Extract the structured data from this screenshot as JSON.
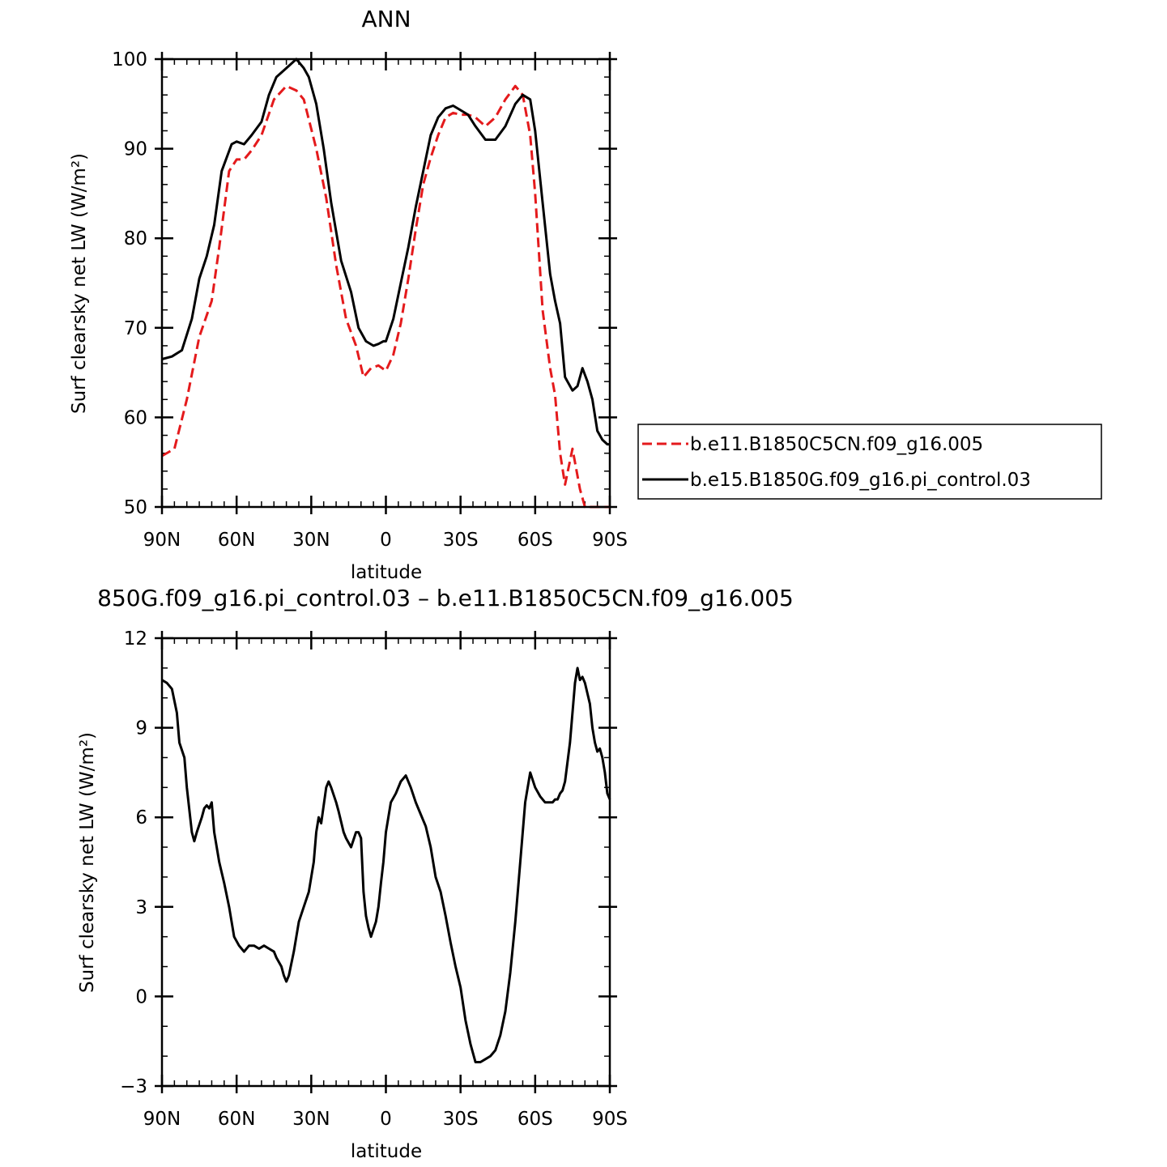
{
  "chart_data": [
    {
      "type": "line",
      "title": "ANN",
      "xlabel": "latitude",
      "ylabel": "Surf clearsky net LW (W/m²)",
      "xlim": [
        90,
        -90
      ],
      "ylim": [
        50,
        100
      ],
      "x_tick_values": [
        90,
        60,
        30,
        0,
        -30,
        -60,
        -90
      ],
      "x_tick_labels": [
        "90N",
        "60N",
        "30N",
        "0",
        "30S",
        "60S",
        "90S"
      ],
      "y_tick_values": [
        50,
        60,
        70,
        80,
        90,
        100
      ],
      "y_tick_labels": [
        "50",
        "60",
        "70",
        "80",
        "90",
        "100"
      ],
      "legend_position": "right",
      "series": [
        {
          "name": "b.e11.B1850C5CN.f09_g16.005",
          "color": "#e41a1c",
          "style": "dashed",
          "x": [
            90,
            85,
            80,
            75,
            70,
            67,
            63,
            60,
            57,
            54,
            50,
            45,
            40,
            36,
            33,
            28,
            24,
            20,
            16,
            12,
            9,
            6,
            3,
            0,
            -3,
            -6,
            -9,
            -12,
            -15,
            -18,
            -21,
            -24,
            -27,
            -30,
            -33,
            -36,
            -40,
            -44,
            -48,
            -52,
            -55,
            -58,
            -60,
            -63,
            -66,
            -68,
            -70,
            -72,
            -75,
            -78,
            -80,
            -82,
            -85,
            -88,
            -90
          ],
          "y": [
            55.7,
            56.5,
            62,
            69,
            73,
            79,
            87.5,
            88.8,
            88.8,
            89.8,
            91.5,
            95.5,
            97,
            96.5,
            95.5,
            90,
            84.5,
            77,
            71,
            68,
            64.5,
            65.5,
            65.8,
            65.2,
            67,
            70.5,
            75.5,
            81,
            86,
            89,
            91.5,
            93.5,
            94,
            93.8,
            93.8,
            93.5,
            92.5,
            93.5,
            95.5,
            97,
            96,
            91.5,
            85,
            72,
            65.5,
            62.5,
            56,
            52.5,
            56.5,
            52,
            50,
            50,
            50,
            50,
            50
          ]
        },
        {
          "name": "b.e15.B1850G.f09_g16.pi_control.03",
          "color": "#000000",
          "style": "solid",
          "x": [
            90,
            86,
            82,
            78,
            75,
            72,
            69,
            66,
            62,
            60,
            57,
            54,
            50,
            47,
            44,
            40,
            36,
            33,
            31,
            28,
            25,
            22,
            18,
            14,
            11,
            8,
            5,
            3,
            1,
            0,
            -3,
            -6,
            -9,
            -12,
            -15,
            -18,
            -21,
            -24,
            -27,
            -30,
            -33,
            -36,
            -40,
            -44,
            -48,
            -52,
            -55,
            -58,
            -60,
            -63,
            -66,
            -68,
            -70,
            -72,
            -75,
            -77,
            -79,
            -81,
            -83,
            -85,
            -87,
            -89,
            -90
          ],
          "y": [
            66.5,
            66.8,
            67.5,
            71,
            75.5,
            78,
            81.5,
            87.5,
            90.5,
            90.8,
            90.5,
            91.5,
            93,
            96,
            98,
            99,
            100,
            99,
            98,
            95,
            90,
            84,
            77.5,
            74,
            70,
            68.5,
            68,
            68.2,
            68.5,
            68.5,
            71,
            75,
            79,
            83.5,
            87.5,
            91.5,
            93.5,
            94.5,
            94.8,
            94.3,
            93.8,
            92.5,
            91,
            91,
            92.5,
            95,
            96,
            95.5,
            92,
            84,
            76,
            73,
            70.5,
            64.5,
            63,
            63.5,
            65.5,
            64,
            62,
            58.5,
            57.5,
            57,
            57
          ]
        }
      ]
    },
    {
      "type": "line",
      "title": "850G.f09_g16.pi_control.03 – b.e11.B1850C5CN.f09_g16.005",
      "xlabel": "latitude",
      "ylabel": "Surf clearsky net LW (W/m²)",
      "xlim": [
        90,
        -90
      ],
      "ylim": [
        -3,
        12
      ],
      "x_tick_values": [
        90,
        60,
        30,
        0,
        -30,
        -60,
        -90
      ],
      "x_tick_labels": [
        "90N",
        "60N",
        "30N",
        "0",
        "30S",
        "60S",
        "90S"
      ],
      "y_tick_values": [
        -3,
        0,
        3,
        6,
        9,
        12
      ],
      "y_tick_labels": [
        "−3",
        "0",
        "3",
        "6",
        "9",
        "12"
      ],
      "series": [
        {
          "color": "#000000",
          "style": "solid",
          "x": [
            90,
            88,
            86,
            84,
            83,
            81,
            80,
            78,
            77,
            76,
            74,
            73,
            72,
            71,
            70,
            69,
            67,
            65,
            63,
            61,
            59,
            57,
            55,
            53,
            51,
            49,
            47,
            45,
            44,
            42,
            41,
            40,
            39,
            37,
            35,
            33,
            31,
            29,
            28,
            27,
            26,
            24,
            23,
            22,
            20,
            19,
            17,
            16,
            14,
            12,
            11,
            10,
            9,
            8,
            7,
            6,
            4,
            3,
            2,
            1,
            0,
            -2,
            -4,
            -6,
            -8,
            -10,
            -12,
            -14,
            -15,
            -16,
            -18,
            -20,
            -22,
            -24,
            -26,
            -28,
            -30,
            -32,
            -34,
            -36,
            -38,
            -40,
            -42,
            -44,
            -46,
            -48,
            -50,
            -52,
            -54,
            -56,
            -58,
            -60,
            -62,
            -64,
            -66,
            -67,
            -68,
            -69,
            -70,
            -71,
            -72,
            -74,
            -76,
            -77,
            -78,
            -79,
            -80,
            -82,
            -83,
            -84,
            -85,
            -86,
            -87,
            -88,
            -89,
            -90
          ],
          "y": [
            10.6,
            10.5,
            10.3,
            9.5,
            8.5,
            8,
            7,
            5.5,
            5.2,
            5.5,
            6,
            6.3,
            6.4,
            6.3,
            6.5,
            5.5,
            4.5,
            3.8,
            3,
            2,
            1.7,
            1.5,
            1.7,
            1.7,
            1.6,
            1.7,
            1.6,
            1.5,
            1.3,
            1,
            0.7,
            0.5,
            0.7,
            1.5,
            2.5,
            3,
            3.5,
            4.5,
            5.5,
            6,
            5.8,
            7,
            7.2,
            7,
            6.5,
            6.2,
            5.5,
            5.3,
            5,
            5.5,
            5.5,
            5.3,
            3.5,
            2.7,
            2.3,
            2,
            2.5,
            3,
            3.8,
            4.5,
            5.5,
            6.5,
            6.8,
            7.2,
            7.4,
            7,
            6.5,
            6.1,
            5.9,
            5.7,
            5,
            4,
            3.5,
            2.7,
            1.8,
            1,
            0.3,
            -0.8,
            -1.6,
            -2.2,
            -2.2,
            -2.1,
            -2,
            -1.8,
            -1.3,
            -0.5,
            0.8,
            2.5,
            4.5,
            6.5,
            7.5,
            7,
            6.7,
            6.5,
            6.5,
            6.5,
            6.6,
            6.6,
            6.8,
            6.9,
            7.2,
            8.5,
            10.5,
            11,
            10.6,
            10.7,
            10.5,
            9.8,
            9,
            8.5,
            8.2,
            8.3,
            8,
            7.5,
            6.8,
            6.6
          ]
        }
      ]
    }
  ]
}
